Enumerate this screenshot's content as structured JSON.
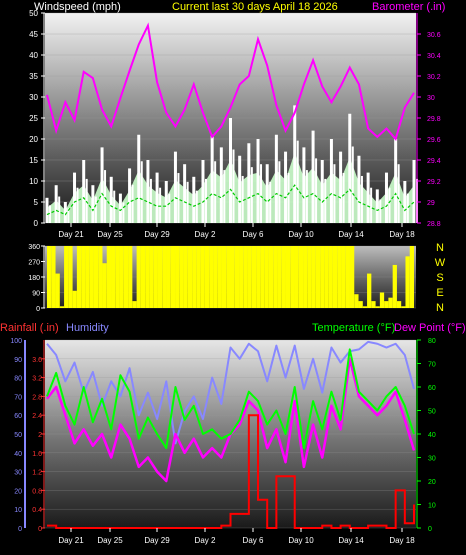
{
  "header": {
    "left": "Windspeed (mph)",
    "center": "Current last 30 days April 18 2026",
    "right": "Barometer (.in)"
  },
  "bottom_header": {
    "rainfall": "Rainfall (.in)",
    "humidity": "Humidity",
    "temperature": "Temperature (°F)",
    "dewpoint": "Dew Point (°F)"
  },
  "colors": {
    "wind": "#ffffff",
    "gust_fill": "#ccffcc",
    "wind_avg": "#00cc00",
    "barometer": "#ff00ff",
    "direction": "#ffff00",
    "rain": "#ff0000",
    "humidity": "#8888ff",
    "temperature": "#00ff00",
    "dewpoint": "#ff00ff",
    "header_left": "#ffffff",
    "header_center": "#ffff00"
  },
  "chart_data": [
    {
      "type": "area",
      "name": "wind-barometer",
      "xticks": [
        "Day 21",
        "Day 25",
        "Day 29",
        "Day 2",
        "Day 6",
        "Day 10",
        "Day 14",
        "Day 18"
      ],
      "ylim_left": [
        0,
        50
      ],
      "yticks_left": [
        "0",
        "5",
        "10",
        "15",
        "20",
        "25",
        "30",
        "35",
        "40",
        "45",
        "50"
      ],
      "ylim_right": [
        28.8,
        30.8
      ],
      "yticks_right": [
        "28.8",
        "29",
        "29.2",
        "29.4",
        "29.6",
        "29.8",
        "30",
        "30.2",
        "30.4",
        "30.6"
      ],
      "series": [
        {
          "name": "Barometer",
          "axis": "right",
          "values": [
            30.02,
            29.68,
            29.95,
            29.78,
            30.24,
            30.18,
            29.88,
            29.72,
            29.99,
            30.25,
            30.5,
            30.68,
            30.14,
            29.85,
            29.72,
            29.88,
            30.12,
            29.85,
            29.62,
            29.72,
            29.9,
            30.12,
            30.2,
            30.55,
            30.3,
            29.92,
            29.68,
            29.85,
            30.12,
            30.35,
            30.1,
            29.95,
            30.1,
            30.28,
            30.12,
            29.7,
            29.62,
            29.7,
            29.6,
            29.9,
            30.04
          ]
        },
        {
          "name": "Wind Gust",
          "axis": "left",
          "values": [
            6,
            9,
            5,
            12,
            15,
            9,
            18,
            11,
            7,
            13,
            21,
            15,
            12,
            10,
            17,
            14,
            11,
            15,
            21,
            18,
            25,
            16,
            19,
            20,
            14,
            21,
            17,
            28,
            18,
            22,
            15,
            20,
            17,
            26,
            16,
            12,
            8,
            12,
            20,
            10,
            15
          ]
        },
        {
          "name": "Wind Avg",
          "axis": "left",
          "values": [
            2,
            3,
            2,
            5,
            6,
            3,
            7,
            4,
            3,
            5,
            6,
            5,
            4,
            4,
            6,
            5,
            4,
            5,
            7,
            6,
            8,
            5,
            6,
            7,
            5,
            7,
            6,
            9,
            6,
            7,
            5,
            7,
            6,
            8,
            5,
            4,
            3,
            4,
            7,
            3,
            5
          ]
        }
      ]
    },
    {
      "type": "area",
      "name": "wind-direction",
      "ylim": [
        0,
        360
      ],
      "yticks": [
        "0",
        "90",
        "180",
        "270",
        "360"
      ],
      "compass": [
        "N",
        "W",
        "S",
        "E",
        "N"
      ],
      "values": [
        360,
        360,
        200,
        10,
        360,
        360,
        100,
        360,
        360,
        360,
        360,
        360,
        360,
        260,
        360,
        360,
        360,
        360,
        360,
        360,
        40,
        360,
        360,
        360,
        360,
        360,
        360,
        360,
        360,
        360,
        360,
        360,
        360,
        360,
        360,
        360,
        360,
        360,
        360,
        360,
        360,
        360,
        360,
        360,
        360,
        360,
        360,
        360,
        360,
        360,
        360,
        360,
        360,
        360,
        360,
        360,
        360,
        360,
        360,
        360,
        360,
        360,
        360,
        360,
        360,
        360,
        360,
        360,
        360,
        360,
        360,
        360,
        80,
        40,
        10,
        200,
        40,
        10,
        90,
        40,
        60,
        250,
        40,
        10,
        300,
        360,
        320
      ]
    },
    {
      "type": "line",
      "name": "rain-humidity-temperature",
      "xticks": [
        "Day 21",
        "Day 25",
        "Day 29",
        "Day 2",
        "Day 6",
        "Day 10",
        "Day 14",
        "Day 18"
      ],
      "ylim_humidity": [
        0,
        100
      ],
      "yticks_humidity": [
        "0",
        "10",
        "20",
        "30",
        "40",
        "50",
        "60",
        "70",
        "80",
        "90",
        "100"
      ],
      "ylim_rain": [
        0,
        4
      ],
      "yticks_rain": [
        "0",
        "0.4",
        "0.8",
        "1.2",
        "1.6",
        "2",
        "2.4",
        "2.8",
        "3.2",
        "3.6"
      ],
      "ylim_temp": [
        0,
        80
      ],
      "yticks_temp": [
        "0",
        "10",
        "20",
        "30",
        "40",
        "50",
        "60",
        "70",
        "80"
      ],
      "series": [
        {
          "name": "Humidity",
          "axis": "humidity",
          "values": [
            98,
            92,
            78,
            88,
            72,
            83,
            65,
            78,
            70,
            85,
            60,
            72,
            58,
            78,
            45,
            62,
            70,
            58,
            80,
            66,
            96,
            90,
            98,
            94,
            78,
            97,
            80,
            97,
            74,
            90,
            72,
            96,
            88,
            94,
            95,
            99,
            98,
            96,
            98,
            92,
            74
          ]
        },
        {
          "name": "Temperature",
          "axis": "temp",
          "values": [
            56,
            66,
            52,
            44,
            60,
            45,
            55,
            42,
            65,
            58,
            38,
            47,
            40,
            34,
            60,
            46,
            52,
            40,
            42,
            38,
            40,
            46,
            58,
            54,
            44,
            50,
            40,
            60,
            34,
            54,
            42,
            58,
            46,
            76,
            58,
            54,
            50,
            56,
            60,
            52,
            40
          ]
        },
        {
          "name": "Dew Point",
          "axis": "temp",
          "values": [
            55,
            60,
            48,
            36,
            42,
            35,
            40,
            30,
            44,
            38,
            26,
            30,
            24,
            20,
            40,
            32,
            38,
            30,
            34,
            30,
            40,
            44,
            54,
            50,
            34,
            42,
            28,
            54,
            26,
            44,
            30,
            52,
            42,
            72,
            56,
            52,
            48,
            52,
            58,
            46,
            33
          ]
        },
        {
          "name": "Rainfall",
          "axis": "rain",
          "values": [
            0.05,
            0,
            0,
            0,
            0,
            0,
            0,
            0,
            0,
            0,
            0,
            0,
            0,
            0,
            0,
            0,
            0,
            0,
            0,
            0.05,
            0.3,
            0.3,
            2.4,
            0.6,
            0,
            1.1,
            1.1,
            0,
            0,
            0,
            0.05,
            0,
            0.05,
            0,
            0,
            0.05,
            0.05,
            0,
            0.8,
            0.1,
            0.5
          ]
        }
      ]
    }
  ]
}
